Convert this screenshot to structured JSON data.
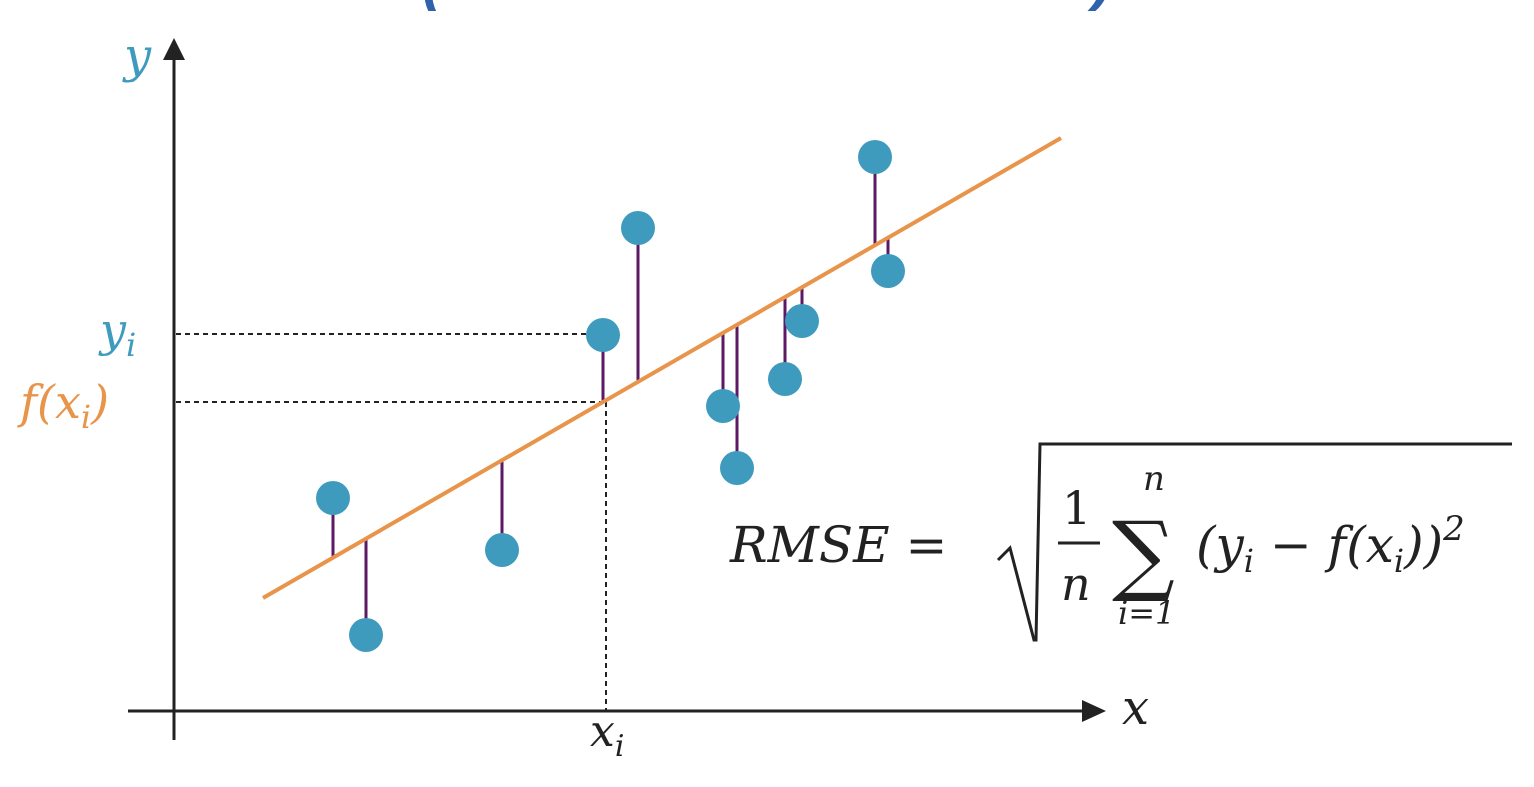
{
  "title": "(racine carrée de la MSE)",
  "labels": {
    "y_axis": "y",
    "x_axis": "x",
    "y_i": "y",
    "y_i_sub": "i",
    "f_xi": "f(x",
    "f_xi_sub": "i",
    "f_xi_close": ")",
    "x_i": "x",
    "x_i_sub": "i"
  },
  "formula": {
    "lhs": "RMSE =",
    "frac_num": "1",
    "frac_den": "n",
    "sum_top": "n",
    "sum_bottom": "i=1",
    "sigma": "∑",
    "body_open": "(y",
    "body_sub_i": "i",
    "body_mid": " − f(x",
    "body_sub_i2": "i",
    "body_close": "))",
    "exponent": "2"
  },
  "colors": {
    "title": "#2f62aa",
    "point": "#3f9bbd",
    "line": "#e8944a",
    "residual": "#5b1a63",
    "axis": "#222222",
    "fx_label": "#e8944a",
    "y_label": "#3f9bbd"
  }
}
